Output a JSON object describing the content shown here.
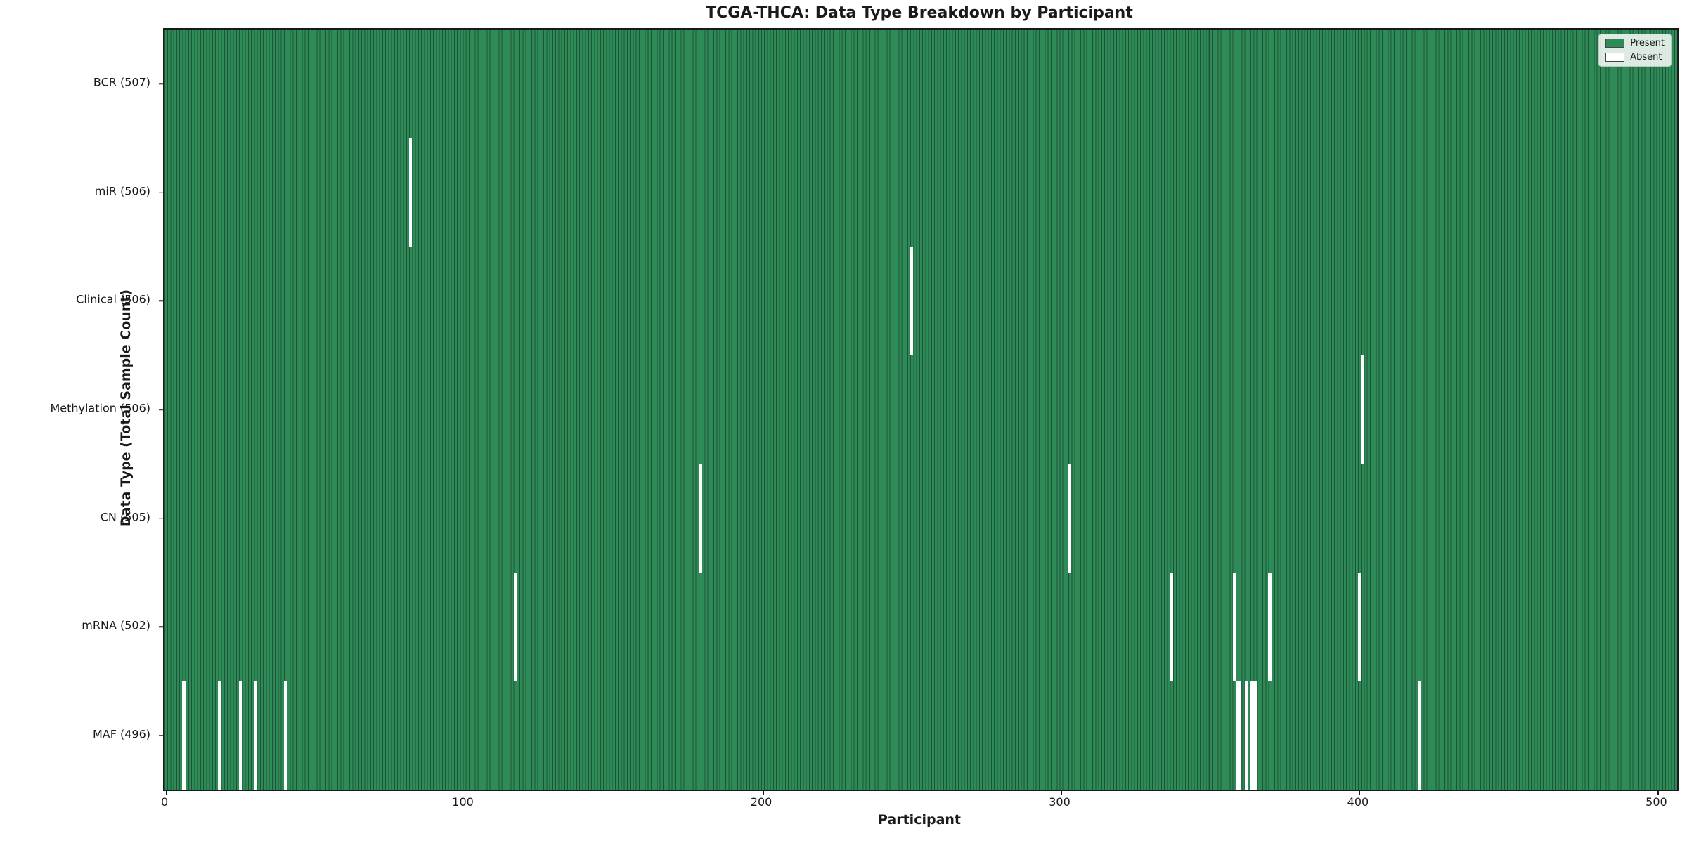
{
  "title": "TCGA-THCA: Data Type Breakdown by Participant",
  "xlabel": "Participant",
  "ylabel": "Data Type (Total Sample Count)",
  "legend": {
    "present_label": "Present",
    "absent_label": "Absent"
  },
  "colors": {
    "present": "#2e8b57",
    "absent": "#ffffff",
    "bar_edge": "#1c5437",
    "axis": "#1a1a1a"
  },
  "chart_data": {
    "type": "heatmap",
    "title": "TCGA-THCA: Data Type Breakdown by Participant",
    "xlabel": "Participant",
    "ylabel": "Data Type (Total Sample Count)",
    "legend_entries": [
      "Present",
      "Absent"
    ],
    "legend_position": "upper right",
    "n_participants": 507,
    "x_ticks": [
      0,
      100,
      200,
      300,
      400,
      500
    ],
    "grid": false,
    "rows": [
      {
        "label": "BCR (507)",
        "data_type": "BCR",
        "total_samples": 507,
        "absent_participants": []
      },
      {
        "label": "miR (506)",
        "data_type": "miR",
        "total_samples": 506,
        "absent_participants": [
          82
        ]
      },
      {
        "label": "Clinical (506)",
        "data_type": "Clinical",
        "total_samples": 506,
        "absent_participants": [
          250
        ]
      },
      {
        "label": "Methylation (506)",
        "data_type": "Methylation",
        "total_samples": 506,
        "absent_participants": [
          401
        ]
      },
      {
        "label": "CN (505)",
        "data_type": "CN",
        "total_samples": 505,
        "absent_participants": [
          179,
          303
        ]
      },
      {
        "label": "mRNA (502)",
        "data_type": "mRNA",
        "total_samples": 502,
        "absent_participants": [
          117,
          337,
          358,
          370,
          400
        ]
      },
      {
        "label": "MAF (496)",
        "data_type": "MAF",
        "total_samples": 496,
        "absent_participants": [
          6,
          18,
          25,
          30,
          40,
          359,
          360,
          362,
          364,
          365,
          420
        ]
      }
    ]
  }
}
